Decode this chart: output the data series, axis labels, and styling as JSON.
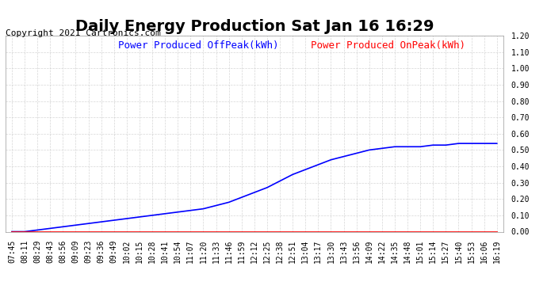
{
  "title": "Daily Energy Production Sat Jan 16 16:29",
  "copyright": "Copyright 2021 Cartronics.com",
  "legend_offpeak": "Power Produced OffPeak(kWh)",
  "legend_onpeak": "Power Produced OnPeak(kWh)",
  "legend_offpeak_color": "#0000ff",
  "legend_onpeak_color": "#ff0000",
  "copyright_color": "#000000",
  "title_color": "#000000",
  "background_color": "#ffffff",
  "plot_bg_color": "#ffffff",
  "grid_color": "#cccccc",
  "ylim": [
    0.0,
    1.2
  ],
  "yticks": [
    0.0,
    0.1,
    0.2,
    0.3,
    0.4,
    0.5,
    0.6,
    0.7,
    0.8,
    0.9,
    1.0,
    1.1,
    1.2
  ],
  "x_labels": [
    "07:45",
    "08:11",
    "08:29",
    "08:43",
    "08:56",
    "09:09",
    "09:23",
    "09:36",
    "09:49",
    "10:02",
    "10:15",
    "10:28",
    "10:41",
    "10:54",
    "11:07",
    "11:20",
    "11:33",
    "11:46",
    "11:59",
    "12:12",
    "12:25",
    "12:38",
    "12:51",
    "13:04",
    "13:17",
    "13:30",
    "13:43",
    "13:56",
    "14:09",
    "14:22",
    "14:35",
    "14:48",
    "15:01",
    "15:14",
    "15:27",
    "15:40",
    "15:53",
    "16:06",
    "16:19"
  ],
  "offpeak_values": [
    0.0,
    0.0,
    0.01,
    0.02,
    0.03,
    0.04,
    0.05,
    0.06,
    0.07,
    0.08,
    0.09,
    0.1,
    0.11,
    0.12,
    0.13,
    0.14,
    0.16,
    0.18,
    0.21,
    0.24,
    0.27,
    0.31,
    0.35,
    0.38,
    0.41,
    0.44,
    0.46,
    0.48,
    0.5,
    0.51,
    0.52,
    0.52,
    0.52,
    0.53,
    0.53,
    0.54,
    0.54,
    0.54,
    0.54
  ],
  "onpeak_values": [
    0.0,
    0.0,
    0.0,
    0.0,
    0.0,
    0.0,
    0.0,
    0.0,
    0.0,
    0.0,
    0.0,
    0.0,
    0.0,
    0.0,
    0.0,
    0.0,
    0.0,
    0.0,
    0.0,
    0.0,
    0.0,
    0.0,
    0.0,
    0.0,
    0.0,
    0.0,
    0.0,
    0.0,
    0.0,
    0.0,
    0.0,
    0.0,
    0.0,
    0.0,
    0.0,
    0.0,
    0.0,
    0.0,
    0.0
  ],
  "line_color_offpeak": "#0000ff",
  "line_color_onpeak": "#ff0000",
  "title_fontsize": 14,
  "copyright_fontsize": 8,
  "tick_fontsize": 7,
  "legend_fontsize": 9,
  "ylabel_fontsize": 9
}
